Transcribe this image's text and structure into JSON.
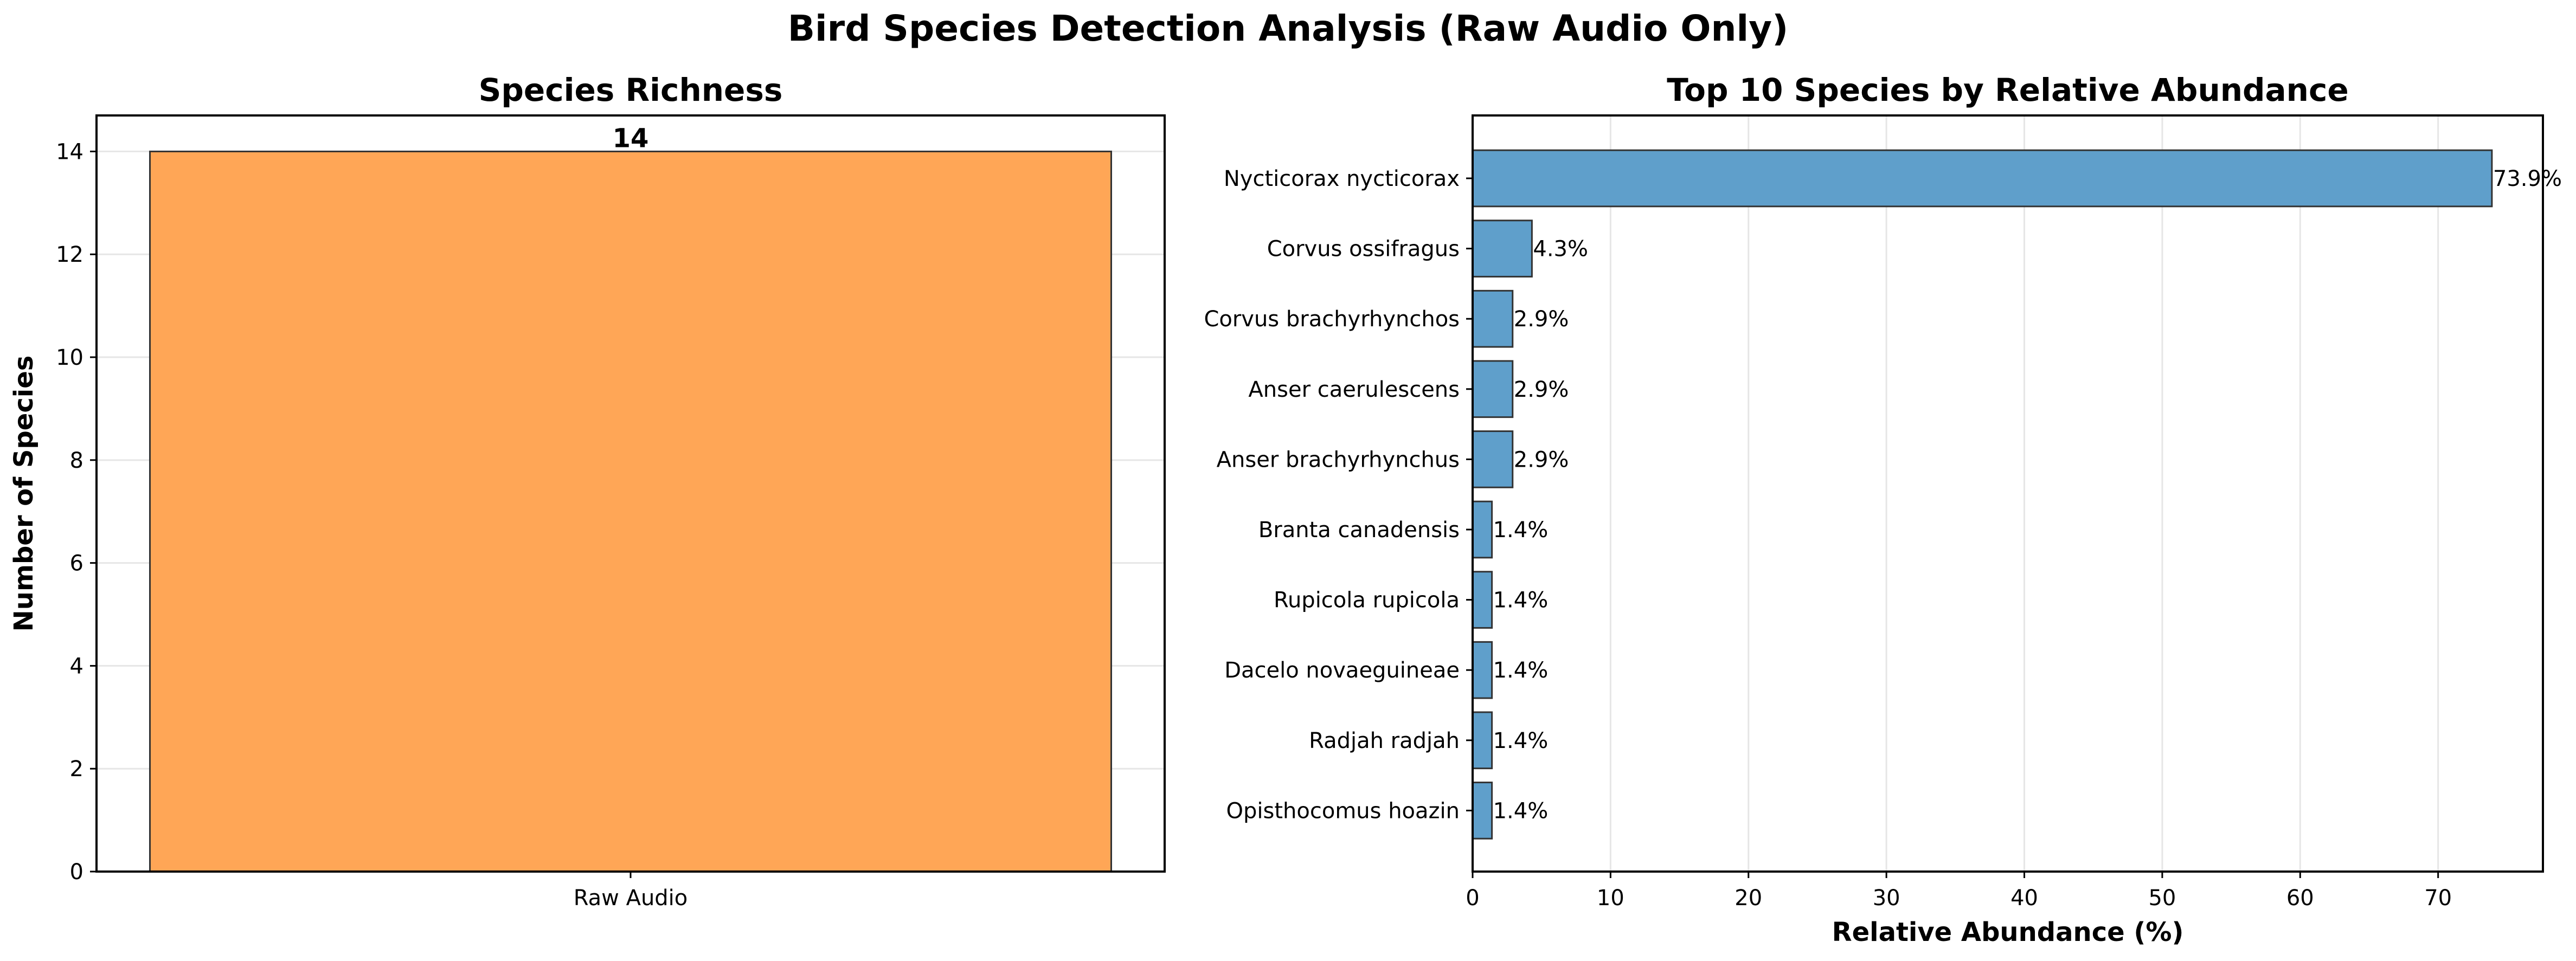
{
  "figure_title": "Bird Species Detection Analysis (Raw Audio Only)",
  "colors": {
    "richness_bar": "#FFA656",
    "abundance_bar": "#5F9FCB",
    "edge": "#333333",
    "grid": "#e6e6e6"
  },
  "chart_data": [
    {
      "type": "bar",
      "title": "Species Richness",
      "xlabel": "",
      "ylabel": "Number of Species",
      "categories": [
        "Raw Audio"
      ],
      "values": [
        14
      ],
      "data_labels": [
        "14"
      ],
      "ylim": [
        0,
        14.7
      ],
      "yticks": [
        0,
        2,
        4,
        6,
        8,
        10,
        12,
        14
      ],
      "grid": "y"
    },
    {
      "type": "bar",
      "orientation": "horizontal",
      "title": "Top 10 Species by Relative Abundance",
      "xlabel": "Relative Abundance (%)",
      "ylabel": "",
      "categories": [
        "Nycticorax nycticorax",
        "Corvus ossifragus",
        "Corvus brachyrhynchos",
        "Anser caerulescens",
        "Anser brachyrhynchus",
        "Branta canadensis",
        "Rupicola rupicola",
        "Dacelo novaeguineae",
        "Radjah radjah",
        "Opisthocomus hoazin"
      ],
      "values": [
        73.9,
        4.3,
        2.9,
        2.9,
        2.9,
        1.4,
        1.4,
        1.4,
        1.4,
        1.4
      ],
      "data_labels": [
        "73.9%",
        "4.3%",
        "2.9%",
        "2.9%",
        "2.9%",
        "1.4%",
        "1.4%",
        "1.4%",
        "1.4%",
        "1.4%"
      ],
      "xlim": [
        0,
        77.6
      ],
      "xticks": [
        0,
        10,
        20,
        30,
        40,
        50,
        60,
        70
      ],
      "grid": "x"
    }
  ]
}
